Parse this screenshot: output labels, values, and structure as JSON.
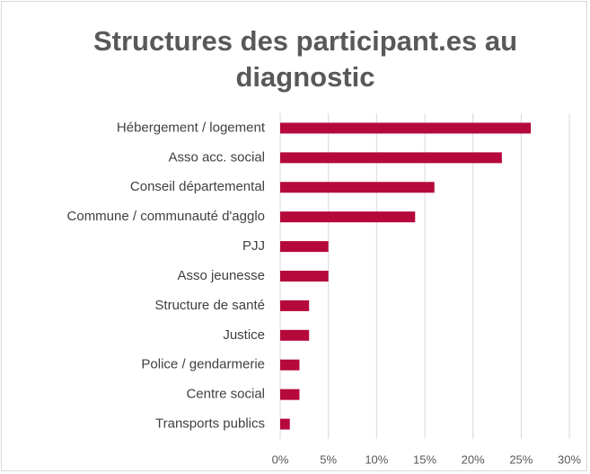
{
  "chart_data": {
    "type": "bar",
    "orientation": "horizontal",
    "title": "Structures des participant.es au diagnostic",
    "categories": [
      "Hébergement / logement",
      "Asso acc. social",
      "Conseil départemental",
      "Commune / communauté d'agglo",
      "PJJ",
      "Asso jeunesse",
      "Structure de santé",
      "Justice",
      "Police / gendarmerie",
      "Centre social",
      "Transports publics"
    ],
    "values": [
      26,
      23,
      16,
      14,
      5,
      5,
      3,
      3,
      2,
      2,
      1
    ],
    "color": "#b5083b",
    "xlim": [
      0,
      30
    ],
    "xticks": [
      {
        "value": 0,
        "label": "0%"
      },
      {
        "value": 5,
        "label": "5%"
      },
      {
        "value": 10,
        "label": "10%"
      },
      {
        "value": 15,
        "label": "15%"
      },
      {
        "value": 20,
        "label": "20%"
      },
      {
        "value": 25,
        "label": "25%"
      },
      {
        "value": 30,
        "label": "30%"
      }
    ],
    "grid": true
  }
}
